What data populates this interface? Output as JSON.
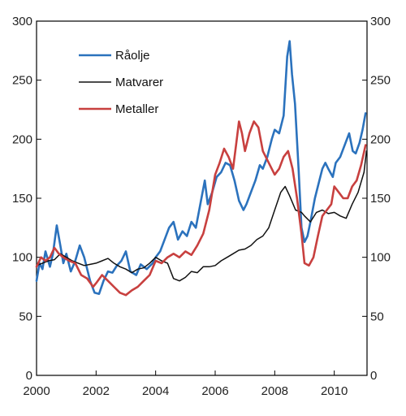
{
  "chart_data": {
    "type": "line",
    "title": "",
    "xlabel": "",
    "ylabel": "",
    "xlim": [
      2000,
      2011.1
    ],
    "ylim": [
      0,
      300
    ],
    "x_ticks": [
      2000,
      2002,
      2004,
      2006,
      2008,
      2010
    ],
    "y_ticks": [
      0,
      50,
      100,
      150,
      200,
      250,
      300
    ],
    "x_tick_labels": [
      "2000",
      "2002",
      "2004",
      "2006",
      "2008",
      "2010"
    ],
    "y_tick_labels": [
      "0",
      "50",
      "100",
      "150",
      "200",
      "250",
      "300"
    ],
    "grid": false,
    "legend_position": "top-left",
    "series": [
      {
        "name": "Råolje",
        "color": "#2b72bd",
        "points": [
          [
            2000.0,
            80
          ],
          [
            2000.1,
            95
          ],
          [
            2000.2,
            90
          ],
          [
            2000.3,
            105
          ],
          [
            2000.45,
            92
          ],
          [
            2000.55,
            103
          ],
          [
            2000.68,
            127
          ],
          [
            2000.8,
            110
          ],
          [
            2000.9,
            95
          ],
          [
            2001.0,
            103
          ],
          [
            2001.15,
            88
          ],
          [
            2001.3,
            97
          ],
          [
            2001.45,
            110
          ],
          [
            2001.6,
            100
          ],
          [
            2001.8,
            80
          ],
          [
            2001.95,
            70
          ],
          [
            2002.1,
            69
          ],
          [
            2002.25,
            80
          ],
          [
            2002.4,
            88
          ],
          [
            2002.55,
            87
          ],
          [
            2002.7,
            93
          ],
          [
            2002.85,
            97
          ],
          [
            2003.0,
            105
          ],
          [
            2003.15,
            88
          ],
          [
            2003.35,
            85
          ],
          [
            2003.5,
            94
          ],
          [
            2003.7,
            90
          ],
          [
            2003.9,
            95
          ],
          [
            2004.0,
            100
          ],
          [
            2004.15,
            105
          ],
          [
            2004.3,
            115
          ],
          [
            2004.45,
            125
          ],
          [
            2004.6,
            130
          ],
          [
            2004.75,
            115
          ],
          [
            2004.9,
            122
          ],
          [
            2005.05,
            118
          ],
          [
            2005.2,
            130
          ],
          [
            2005.35,
            125
          ],
          [
            2005.5,
            145
          ],
          [
            2005.65,
            165
          ],
          [
            2005.75,
            145
          ],
          [
            2005.9,
            155
          ],
          [
            2006.05,
            168
          ],
          [
            2006.2,
            172
          ],
          [
            2006.35,
            180
          ],
          [
            2006.5,
            178
          ],
          [
            2006.65,
            165
          ],
          [
            2006.8,
            148
          ],
          [
            2006.95,
            140
          ],
          [
            2007.05,
            145
          ],
          [
            2007.2,
            155
          ],
          [
            2007.35,
            165
          ],
          [
            2007.5,
            178
          ],
          [
            2007.6,
            175
          ],
          [
            2007.75,
            185
          ],
          [
            2007.9,
            200
          ],
          [
            2008.0,
            208
          ],
          [
            2008.15,
            205
          ],
          [
            2008.3,
            220
          ],
          [
            2008.42,
            270
          ],
          [
            2008.5,
            283
          ],
          [
            2008.58,
            255
          ],
          [
            2008.68,
            230
          ],
          [
            2008.8,
            175
          ],
          [
            2008.9,
            125
          ],
          [
            2009.0,
            113
          ],
          [
            2009.1,
            118
          ],
          [
            2009.2,
            130
          ],
          [
            2009.35,
            150
          ],
          [
            2009.5,
            165
          ],
          [
            2009.6,
            175
          ],
          [
            2009.7,
            180
          ],
          [
            2009.8,
            175
          ],
          [
            2009.95,
            168
          ],
          [
            2010.05,
            180
          ],
          [
            2010.2,
            185
          ],
          [
            2010.35,
            195
          ],
          [
            2010.5,
            205
          ],
          [
            2010.62,
            190
          ],
          [
            2010.72,
            188
          ],
          [
            2010.85,
            197
          ],
          [
            2010.95,
            208
          ],
          [
            2011.05,
            222
          ]
        ]
      },
      {
        "name": "Matvarer",
        "color": "#111111",
        "points": [
          [
            2000.0,
            93
          ],
          [
            2000.2,
            95
          ],
          [
            2000.4,
            97
          ],
          [
            2000.6,
            98
          ],
          [
            2000.8,
            103
          ],
          [
            2001.0,
            100
          ],
          [
            2001.2,
            97
          ],
          [
            2001.4,
            95
          ],
          [
            2001.6,
            93
          ],
          [
            2001.8,
            94
          ],
          [
            2002.0,
            95
          ],
          [
            2002.2,
            97
          ],
          [
            2002.4,
            99
          ],
          [
            2002.6,
            95
          ],
          [
            2002.8,
            92
          ],
          [
            2003.0,
            90
          ],
          [
            2003.2,
            87
          ],
          [
            2003.4,
            90
          ],
          [
            2003.6,
            91
          ],
          [
            2003.8,
            95
          ],
          [
            2004.0,
            100
          ],
          [
            2004.2,
            97
          ],
          [
            2004.4,
            95
          ],
          [
            2004.6,
            82
          ],
          [
            2004.8,
            80
          ],
          [
            2005.0,
            83
          ],
          [
            2005.2,
            88
          ],
          [
            2005.4,
            87
          ],
          [
            2005.6,
            92
          ],
          [
            2005.8,
            92
          ],
          [
            2006.0,
            93
          ],
          [
            2006.2,
            97
          ],
          [
            2006.4,
            100
          ],
          [
            2006.6,
            103
          ],
          [
            2006.8,
            106
          ],
          [
            2007.0,
            107
          ],
          [
            2007.2,
            110
          ],
          [
            2007.4,
            115
          ],
          [
            2007.6,
            118
          ],
          [
            2007.8,
            125
          ],
          [
            2008.0,
            140
          ],
          [
            2008.2,
            155
          ],
          [
            2008.35,
            160
          ],
          [
            2008.5,
            152
          ],
          [
            2008.7,
            140
          ],
          [
            2008.9,
            138
          ],
          [
            2009.0,
            135
          ],
          [
            2009.2,
            130
          ],
          [
            2009.4,
            138
          ],
          [
            2009.6,
            140
          ],
          [
            2009.8,
            137
          ],
          [
            2010.0,
            138
          ],
          [
            2010.2,
            135
          ],
          [
            2010.4,
            133
          ],
          [
            2010.6,
            145
          ],
          [
            2010.8,
            155
          ],
          [
            2011.0,
            172
          ],
          [
            2011.08,
            190
          ]
        ]
      },
      {
        "name": "Metaller",
        "color": "#c8403f",
        "points": [
          [
            2000.0,
            92
          ],
          [
            2000.15,
            100
          ],
          [
            2000.3,
            97
          ],
          [
            2000.45,
            100
          ],
          [
            2000.6,
            108
          ],
          [
            2000.75,
            103
          ],
          [
            2000.9,
            100
          ],
          [
            2001.1,
            97
          ],
          [
            2001.3,
            95
          ],
          [
            2001.5,
            85
          ],
          [
            2001.7,
            82
          ],
          [
            2001.9,
            75
          ],
          [
            2002.0,
            78
          ],
          [
            2002.2,
            85
          ],
          [
            2002.4,
            80
          ],
          [
            2002.6,
            75
          ],
          [
            2002.8,
            70
          ],
          [
            2003.0,
            68
          ],
          [
            2003.2,
            72
          ],
          [
            2003.4,
            75
          ],
          [
            2003.6,
            80
          ],
          [
            2003.8,
            85
          ],
          [
            2004.0,
            97
          ],
          [
            2004.2,
            95
          ],
          [
            2004.4,
            100
          ],
          [
            2004.6,
            103
          ],
          [
            2004.8,
            100
          ],
          [
            2005.0,
            105
          ],
          [
            2005.2,
            102
          ],
          [
            2005.4,
            110
          ],
          [
            2005.6,
            120
          ],
          [
            2005.8,
            140
          ],
          [
            2006.0,
            170
          ],
          [
            2006.15,
            180
          ],
          [
            2006.3,
            192
          ],
          [
            2006.45,
            185
          ],
          [
            2006.6,
            175
          ],
          [
            2006.7,
            195
          ],
          [
            2006.8,
            215
          ],
          [
            2006.9,
            205
          ],
          [
            2007.0,
            190
          ],
          [
            2007.15,
            205
          ],
          [
            2007.3,
            215
          ],
          [
            2007.45,
            210
          ],
          [
            2007.6,
            190
          ],
          [
            2007.8,
            180
          ],
          [
            2008.0,
            170
          ],
          [
            2008.15,
            175
          ],
          [
            2008.3,
            185
          ],
          [
            2008.45,
            190
          ],
          [
            2008.6,
            175
          ],
          [
            2008.75,
            150
          ],
          [
            2008.9,
            120
          ],
          [
            2009.0,
            95
          ],
          [
            2009.15,
            93
          ],
          [
            2009.3,
            100
          ],
          [
            2009.45,
            118
          ],
          [
            2009.6,
            135
          ],
          [
            2009.75,
            140
          ],
          [
            2009.9,
            145
          ],
          [
            2010.0,
            160
          ],
          [
            2010.15,
            155
          ],
          [
            2010.3,
            150
          ],
          [
            2010.45,
            150
          ],
          [
            2010.6,
            160
          ],
          [
            2010.75,
            165
          ],
          [
            2010.9,
            178
          ],
          [
            2011.05,
            195
          ]
        ]
      }
    ]
  }
}
